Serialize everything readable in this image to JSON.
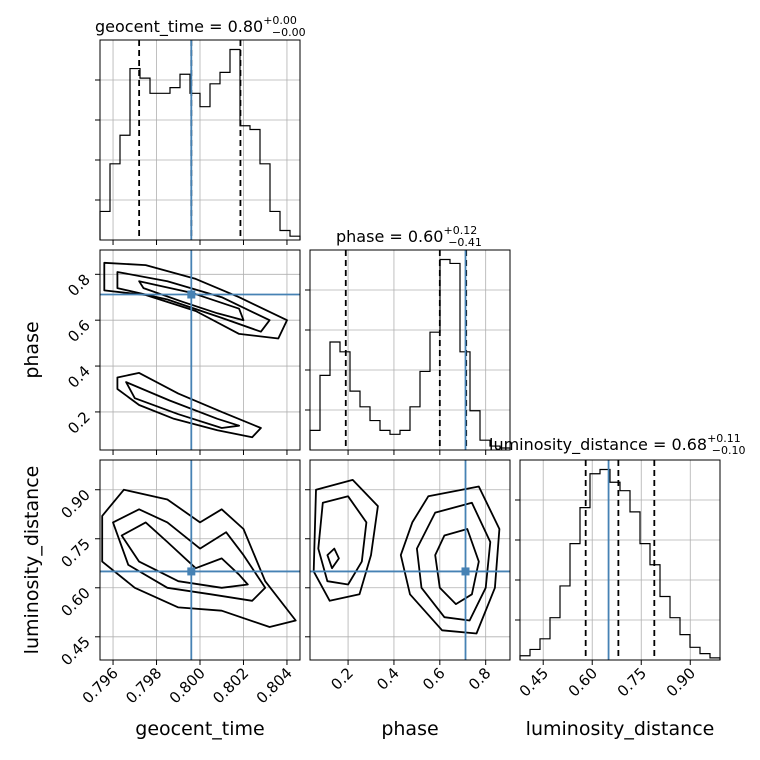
{
  "chart_data": {
    "type": "corner",
    "parameters": [
      "geocent_time",
      "phase",
      "luminosity_distance"
    ],
    "truth": {
      "geocent_time": 0.7996,
      "phase": 0.712,
      "luminosity_distance": 0.65
    },
    "diagonal": [
      {
        "parameter": "geocent_time",
        "title": "geocent_time = 0.80",
        "median": "0.80",
        "plus": "+0.00",
        "minus": "−0.00",
        "title_values": {
          "median": 0.8,
          "plus": 0.0,
          "minus": 0.0
        },
        "xlim": [
          0.7954,
          0.8046
        ],
        "quantiles": [
          0.7972,
          0.7996,
          0.80186
        ],
        "bin_edges": [
          0.7954,
          0.79586,
          0.79632,
          0.79678,
          0.79724,
          0.7977,
          0.79816,
          0.79862,
          0.79908,
          0.79954,
          0.8,
          0.80046,
          0.80092,
          0.80138,
          0.80184,
          0.8023,
          0.80276,
          0.80322,
          0.80368,
          0.80414,
          0.8046
        ],
        "counts": [
          15,
          40,
          55,
          90,
          85,
          77,
          77,
          80,
          87,
          77,
          70,
          82,
          88,
          100,
          60,
          58,
          40,
          15,
          5,
          2
        ]
      },
      {
        "parameter": "phase",
        "title": "phase = 0.60",
        "median": "0.60",
        "plus": "+0.12",
        "minus": "−0.41",
        "title_values": {
          "median": 0.6,
          "plus": 0.12,
          "minus": 0.41
        },
        "xlim": [
          0.034,
          0.906
        ],
        "quantiles": [
          0.19,
          0.6,
          0.715
        ],
        "bin_edges": [
          0.034,
          0.0776,
          0.1212,
          0.1648,
          0.2084,
          0.252,
          0.2956,
          0.3392,
          0.3828,
          0.4264,
          0.47,
          0.5136,
          0.5572,
          0.6008,
          0.6444,
          0.688,
          0.7316,
          0.7752,
          0.8188,
          0.8624,
          0.906
        ],
        "counts": [
          10,
          38,
          55,
          50,
          30,
          22,
          15,
          10,
          8,
          10,
          22,
          40,
          60,
          97,
          95,
          50,
          20,
          5,
          2,
          1
        ]
      },
      {
        "parameter": "luminosity_distance",
        "title": "luminosity_distance = 0.68",
        "median": "0.68",
        "plus": "+0.11",
        "minus": "−0.10",
        "title_values": {
          "median": 0.68,
          "plus": 0.11,
          "minus": 0.1
        },
        "xlim": [
          0.379,
          0.991
        ],
        "quantiles": [
          0.58,
          0.68,
          0.79
        ],
        "bin_edges": [
          0.379,
          0.4096,
          0.4402,
          0.4708,
          0.5014,
          0.532,
          0.5626,
          0.5932,
          0.6238,
          0.6544,
          0.685,
          0.7156,
          0.7462,
          0.7768,
          0.8074,
          0.838,
          0.8686,
          0.8992,
          0.9298,
          0.9604,
          0.991
        ],
        "counts": [
          2,
          5,
          10,
          20,
          35,
          55,
          72,
          88,
          90,
          84,
          80,
          70,
          55,
          45,
          30,
          20,
          12,
          6,
          3,
          1
        ]
      }
    ],
    "pairs": [
      {
        "x": "geocent_time",
        "y": "phase",
        "xlim": [
          0.7954,
          0.8046
        ],
        "ylim": [
          0.034,
          0.906
        ],
        "yticks": [
          "0.2",
          "0.4",
          "0.6",
          "0.8"
        ],
        "contours": [
          {
            "level": "outer",
            "points": [
              [
                0.7956,
                0.85
              ],
              [
                0.7975,
                0.84
              ],
              [
                0.7998,
                0.78
              ],
              [
                0.8018,
                0.7
              ],
              [
                0.804,
                0.6
              ],
              [
                0.8036,
                0.52
              ],
              [
                0.8018,
                0.54
              ],
              [
                0.7998,
                0.64
              ],
              [
                0.7975,
                0.71
              ],
              [
                0.7956,
                0.73
              ]
            ]
          },
          {
            "level": "outer",
            "points": [
              [
                0.7962,
                0.35
              ],
              [
                0.7972,
                0.37
              ],
              [
                0.799,
                0.28
              ],
              [
                0.801,
                0.2
              ],
              [
                0.8028,
                0.13
              ],
              [
                0.8024,
                0.09
              ],
              [
                0.8008,
                0.12
              ],
              [
                0.7988,
                0.17
              ],
              [
                0.7972,
                0.23
              ],
              [
                0.7962,
                0.3
              ]
            ]
          },
          {
            "level": "middle",
            "points": [
              [
                0.7962,
                0.81
              ],
              [
                0.7985,
                0.77
              ],
              [
                0.801,
                0.7
              ],
              [
                0.8032,
                0.6
              ],
              [
                0.8028,
                0.55
              ],
              [
                0.801,
                0.61
              ],
              [
                0.7985,
                0.69
              ],
              [
                0.7962,
                0.74
              ]
            ]
          },
          {
            "level": "middle",
            "points": [
              [
                0.7966,
                0.33
              ],
              [
                0.7986,
                0.25
              ],
              [
                0.8008,
                0.17
              ],
              [
                0.8018,
                0.14
              ],
              [
                0.801,
                0.13
              ],
              [
                0.799,
                0.19
              ],
              [
                0.797,
                0.26
              ]
            ]
          },
          {
            "level": "inner",
            "points": [
              [
                0.7972,
                0.77
              ],
              [
                0.7996,
                0.72
              ],
              [
                0.8018,
                0.65
              ],
              [
                0.802,
                0.6
              ],
              [
                0.8008,
                0.63
              ],
              [
                0.7992,
                0.68
              ],
              [
                0.7974,
                0.74
              ]
            ]
          }
        ]
      },
      {
        "x": "geocent_time",
        "y": "luminosity_distance",
        "xlim": [
          0.7954,
          0.8046
        ],
        "ylim": [
          0.379,
          0.991
        ],
        "xticks": [
          "0.796",
          "0.798",
          "0.800",
          "0.802",
          "0.804"
        ],
        "yticks": [
          "0.45",
          "0.60",
          "0.75",
          "0.90"
        ],
        "contours": [
          {
            "level": "outer",
            "points": [
              [
                0.7955,
                0.82
              ],
              [
                0.7965,
                0.9
              ],
              [
                0.7985,
                0.87
              ],
              [
                0.8,
                0.8
              ],
              [
                0.801,
                0.84
              ],
              [
                0.802,
                0.78
              ],
              [
                0.803,
                0.62
              ],
              [
                0.8044,
                0.5
              ],
              [
                0.8032,
                0.48
              ],
              [
                0.801,
                0.53
              ],
              [
                0.799,
                0.54
              ],
              [
                0.797,
                0.6
              ],
              [
                0.7955,
                0.68
              ]
            ]
          },
          {
            "level": "middle",
            "points": [
              [
                0.796,
                0.8
              ],
              [
                0.7972,
                0.84
              ],
              [
                0.7985,
                0.8
              ],
              [
                0.8,
                0.72
              ],
              [
                0.8012,
                0.77
              ],
              [
                0.802,
                0.7
              ],
              [
                0.803,
                0.6
              ],
              [
                0.8024,
                0.56
              ],
              [
                0.8005,
                0.58
              ],
              [
                0.7985,
                0.6
              ],
              [
                0.7967,
                0.67
              ]
            ]
          },
          {
            "level": "inner",
            "points": [
              [
                0.7964,
                0.76
              ],
              [
                0.7975,
                0.8
              ],
              [
                0.7985,
                0.74
              ],
              [
                0.7998,
                0.66
              ],
              [
                0.801,
                0.69
              ],
              [
                0.8018,
                0.64
              ],
              [
                0.8022,
                0.61
              ],
              [
                0.801,
                0.6
              ],
              [
                0.799,
                0.62
              ],
              [
                0.7972,
                0.68
              ]
            ]
          }
        ]
      },
      {
        "x": "phase",
        "y": "luminosity_distance",
        "xlim": [
          0.034,
          0.906
        ],
        "ylim": [
          0.379,
          0.991
        ],
        "xticks": [
          "0.2",
          "0.4",
          "0.6",
          "0.8"
        ],
        "contours": [
          {
            "level": "outer",
            "points": [
              [
                0.06,
                0.9
              ],
              [
                0.22,
                0.93
              ],
              [
                0.33,
                0.85
              ],
              [
                0.3,
                0.7
              ],
              [
                0.25,
                0.58
              ],
              [
                0.12,
                0.56
              ],
              [
                0.05,
                0.65
              ]
            ]
          },
          {
            "level": "middle",
            "points": [
              [
                0.09,
                0.86
              ],
              [
                0.2,
                0.88
              ],
              [
                0.28,
                0.8
              ],
              [
                0.26,
                0.68
              ],
              [
                0.2,
                0.61
              ],
              [
                0.11,
                0.62
              ],
              [
                0.07,
                0.72
              ]
            ]
          },
          {
            "level": "inner",
            "points": [
              [
                0.11,
                0.7
              ],
              [
                0.14,
                0.72
              ],
              [
                0.16,
                0.69
              ],
              [
                0.13,
                0.66
              ]
            ]
          },
          {
            "level": "outer",
            "points": [
              [
                0.55,
                0.88
              ],
              [
                0.77,
                0.91
              ],
              [
                0.86,
                0.78
              ],
              [
                0.84,
                0.6
              ],
              [
                0.76,
                0.46
              ],
              [
                0.61,
                0.47
              ],
              [
                0.47,
                0.58
              ],
              [
                0.43,
                0.7
              ],
              [
                0.48,
                0.8
              ]
            ]
          },
          {
            "level": "middle",
            "points": [
              [
                0.58,
                0.83
              ],
              [
                0.74,
                0.86
              ],
              [
                0.82,
                0.74
              ],
              [
                0.8,
                0.6
              ],
              [
                0.73,
                0.5
              ],
              [
                0.62,
                0.51
              ],
              [
                0.52,
                0.6
              ],
              [
                0.5,
                0.72
              ]
            ]
          },
          {
            "level": "inner",
            "points": [
              [
                0.62,
                0.76
              ],
              [
                0.72,
                0.78
              ],
              [
                0.77,
                0.68
              ],
              [
                0.74,
                0.58
              ],
              [
                0.67,
                0.55
              ],
              [
                0.6,
                0.6
              ],
              [
                0.58,
                0.7
              ]
            ]
          }
        ]
      }
    ],
    "diag_xticks": {
      "luminosity_distance": [
        "0.45",
        "0.60",
        "0.75",
        "0.90"
      ]
    },
    "axis_labels": {
      "geocent_time": "geocent_time",
      "phase": "phase",
      "luminosity_distance": "luminosity_distance"
    },
    "colors": {
      "truth": "#4682b4",
      "lines": "#000000",
      "grid": "#b0b0b0"
    },
    "grid": true
  }
}
